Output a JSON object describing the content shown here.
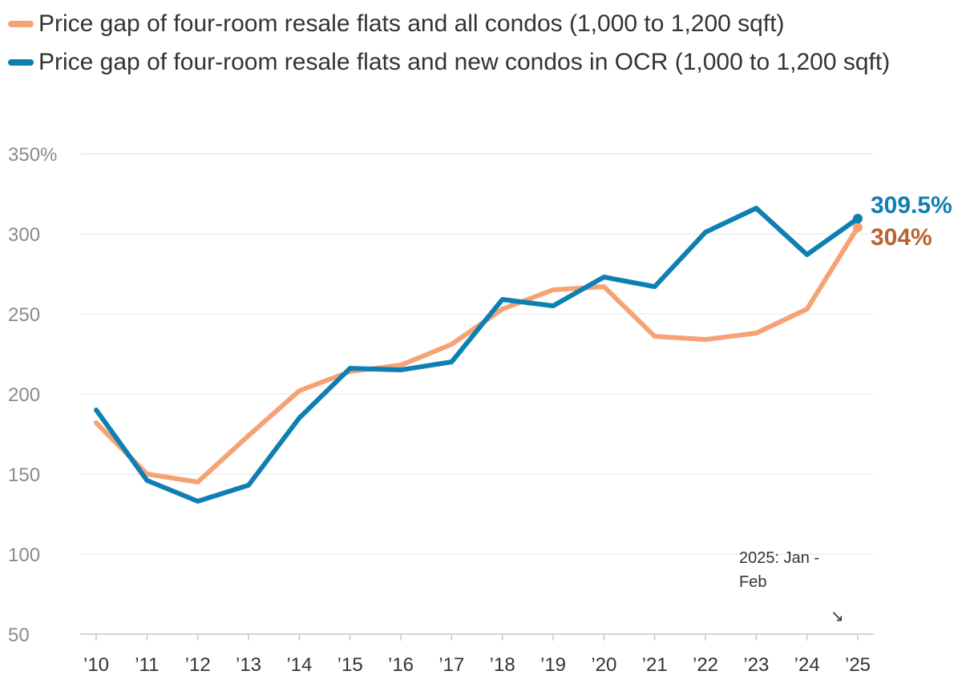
{
  "legend": [
    {
      "label": "Price gap of four-room resale flats and all condos (1,000 to 1,200 sqft)",
      "color": "#f6a275"
    },
    {
      "label": "Price gap of four-room resale flats and new condos in OCR (1,000 to 1,200 sqft)",
      "color": "#0e7fb3"
    }
  ],
  "chart_data": {
    "type": "line",
    "categories": [
      "’10",
      "’11",
      "’12",
      "’13",
      "’14",
      "’15",
      "’16",
      "’17",
      "’18",
      "’19",
      "’20",
      "’21",
      "’22",
      "’23",
      "’24",
      "’25"
    ],
    "series": [
      {
        "name": "Price gap of four-room resale flats and all condos (1,000 to 1,200 sqft)",
        "color": "#f6a275",
        "values": [
          182,
          150,
          145,
          174,
          202,
          214,
          218,
          231,
          253,
          265,
          267,
          236,
          234,
          238,
          253,
          304
        ],
        "end_label": "304%",
        "end_label_color": "#b8632f"
      },
      {
        "name": "Price gap of four-room resale flats and new condos in OCR (1,000 to 1,200 sqft)",
        "color": "#0e7fb3",
        "values": [
          190,
          146,
          133,
          143,
          185,
          216,
          215,
          220,
          259,
          255,
          273,
          267,
          301,
          316,
          287,
          309.5
        ],
        "end_label": "309.5%",
        "end_label_color": "#0e7fb3"
      }
    ],
    "y_ticks": [
      "50",
      "100",
      "150",
      "200",
      "250",
      "300",
      "350%"
    ],
    "y_tick_values": [
      50,
      100,
      150,
      200,
      250,
      300,
      350
    ],
    "ylim": [
      50,
      350
    ],
    "grid": true,
    "annotation": {
      "line1": "2025: Jan -",
      "line2": "Feb",
      "arrow": "↘"
    }
  }
}
